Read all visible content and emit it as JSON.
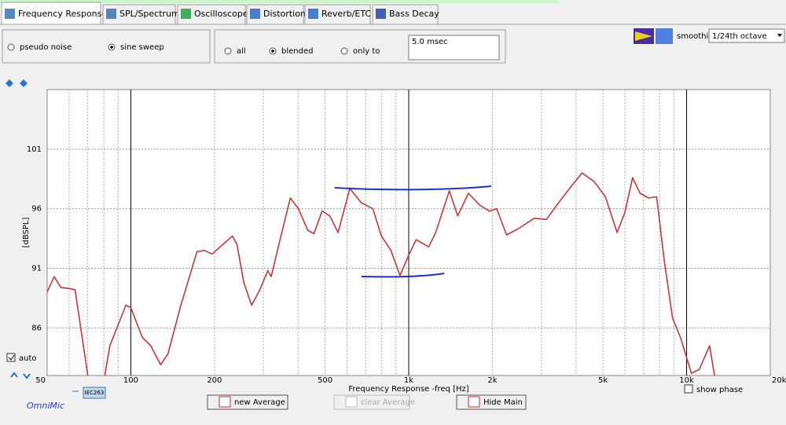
{
  "tabs": [
    "Frequency Response",
    "SPL/Spectrum",
    "Oscilloscope",
    "Distortion",
    "Reverb/ETC",
    "Bass Decay"
  ],
  "active_tab": 0,
  "source_options": [
    "pseudo noise",
    "sine sweep"
  ],
  "source_selected": 1,
  "window_options": [
    "all",
    "blended",
    "only to"
  ],
  "window_selected": 1,
  "window_value": "5.0 msec",
  "smoothing_label": "smoothing",
  "smoothing_value": "1/24th octave",
  "auto_label": "auto",
  "show_phase_label": "show phase",
  "buttons": [
    "new Average",
    "clear Average",
    "Hide Main"
  ],
  "brand": "OmniMic",
  "legend_tag": "IEC263",
  "chart_data": {
    "type": "line",
    "xlabel": "Frequency Response -freq [Hz]",
    "ylabel": "[dBSPL]",
    "xlog": true,
    "xlim": [
      50,
      20000
    ],
    "ylim": [
      82,
      106
    ],
    "xticks": [
      50,
      100,
      200,
      500,
      {
        "value": 1000,
        "label": "1k"
      },
      {
        "value": 2000,
        "label": "2k"
      },
      {
        "value": 5000,
        "label": "5k"
      },
      {
        "value": 10000,
        "label": "10k"
      },
      {
        "value": 20000,
        "label": "20k"
      }
    ],
    "xmajor": [
      100,
      1000,
      10000
    ],
    "xminor": [
      60,
      70,
      80,
      90,
      200,
      300,
      400,
      500,
      600,
      700,
      800,
      900,
      2000,
      3000,
      4000,
      5000,
      6000,
      7000,
      8000,
      9000
    ],
    "yticks": [
      86,
      91,
      96,
      101
    ],
    "grid": true,
    "color": "#c0393b",
    "x": [
      50,
      53,
      56,
      60,
      63,
      70,
      78,
      84,
      96,
      100,
      110,
      118,
      128,
      136,
      151,
      173,
      184,
      196,
      232,
      241,
      255,
      272,
      290,
      311,
      320,
      341,
      375,
      401,
      433,
      456,
      488,
      520,
      557,
      614,
      675,
      743,
      797,
      863,
      930,
      1000,
      1063,
      1180,
      1250,
      1400,
      1500,
      1640,
      1800,
      1950,
      2073,
      2250,
      2470,
      2830,
      3130,
      3460,
      3820,
      4200,
      4640,
      5100,
      5620,
      6000,
      6390,
      6800,
      7300,
      7800,
      8300,
      8900,
      9500,
      10400,
      11100,
      12100,
      12600
    ],
    "values": [
      89.0,
      90.3,
      89.4,
      89.3,
      89.2,
      82,
      80,
      84.5,
      87.9,
      87.7,
      85.2,
      84.5,
      82.9,
      83.8,
      87.8,
      92.4,
      92.5,
      92.2,
      93.7,
      93.0,
      89.8,
      87.9,
      89.1,
      90.8,
      90.3,
      93.0,
      96.9,
      96.0,
      94.2,
      93.9,
      95.8,
      95.4,
      94.0,
      97.7,
      96.5,
      96.0,
      93.7,
      92.5,
      90.4,
      92.1,
      93.4,
      92.8,
      94.0,
      97.5,
      95.4,
      97.3,
      96.3,
      95.8,
      96.0,
      93.8,
      94.3,
      95.2,
      95.1,
      96.5,
      97.8,
      99.0,
      98.3,
      97.0,
      94.0,
      95.7,
      98.6,
      97.3,
      96.9,
      97.0,
      91.7,
      86.8,
      85.2,
      82.2,
      82.5,
      84.5,
      82
    ]
  }
}
